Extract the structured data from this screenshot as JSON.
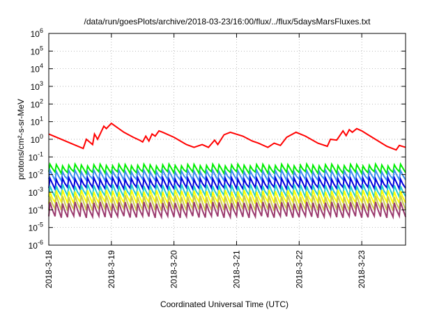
{
  "chart_data": {
    "type": "line",
    "title": "/data/run/goesPlots/archive/2018-03-23/16:00/flux/../flux/5daysMarsFluxes.txt",
    "xlabel": "Coordinated Universal Time (UTC)",
    "ylabel": "protons/cm²-s-sr-MeV",
    "yscale": "log",
    "ylim": [
      -6,
      6
    ],
    "xlim": [
      0,
      5.7
    ],
    "grid": true,
    "x_ticks": [
      {
        "x": 0,
        "label": "2018-3-18"
      },
      {
        "x": 1,
        "label": "2018-3-19"
      },
      {
        "x": 2,
        "label": "2018-3-20"
      },
      {
        "x": 3,
        "label": "2018-3-21"
      },
      {
        "x": 4,
        "label": "2018-3-22"
      },
      {
        "x": 5,
        "label": "2018-3-23"
      }
    ],
    "y_ticks": [
      {
        "exp": -6,
        "base": "10",
        "sup": "-6"
      },
      {
        "exp": -5,
        "base": "10",
        "sup": "-5"
      },
      {
        "exp": -4,
        "base": "10",
        "sup": "-4"
      },
      {
        "exp": -3,
        "base": "10",
        "sup": "-3"
      },
      {
        "exp": -2,
        "base": "10",
        "sup": "-2"
      },
      {
        "exp": -1,
        "base": "10",
        "sup": "-1"
      },
      {
        "exp": 0,
        "base": "10",
        "sup": "0"
      },
      {
        "exp": 1,
        "base": "10",
        "sup": "1"
      },
      {
        "exp": 2,
        "base": "10",
        "sup": "2"
      },
      {
        "exp": 3,
        "base": "10",
        "sup": "3"
      },
      {
        "exp": 4,
        "base": "10",
        "sup": "4"
      },
      {
        "exp": 5,
        "base": "10",
        "sup": "5"
      },
      {
        "exp": 6,
        "base": "10",
        "sup": "6"
      }
    ],
    "series": [
      {
        "color": "#ff0000",
        "x": [
          0.0,
          0.4,
          0.55,
          0.6,
          0.7,
          0.73,
          0.78,
          0.88,
          0.92,
          1.0,
          1.05,
          1.2,
          1.35,
          1.45,
          1.5,
          1.55,
          1.6,
          1.65,
          1.7,
          1.76,
          1.82,
          2.0,
          2.2,
          2.32,
          2.45,
          2.55,
          2.65,
          2.7,
          2.8,
          2.9,
          3.1,
          3.25,
          3.35,
          3.5,
          3.6,
          3.7,
          3.8,
          3.95,
          4.1,
          4.3,
          4.45,
          4.5,
          4.6,
          4.7,
          4.75,
          4.8,
          4.85,
          4.92,
          5.0,
          5.1,
          5.4,
          5.55,
          5.6,
          5.7
        ],
        "y": [
          2.0,
          0.5,
          0.3,
          1.0,
          0.5,
          2.0,
          1.0,
          5.5,
          4.0,
          8.0,
          6.0,
          2.5,
          1.3,
          0.9,
          0.7,
          1.5,
          0.8,
          2.0,
          1.5,
          3.0,
          2.5,
          1.3,
          0.5,
          0.35,
          0.5,
          0.35,
          0.9,
          0.5,
          1.8,
          2.5,
          1.5,
          0.8,
          0.6,
          0.35,
          0.6,
          0.45,
          1.3,
          2.5,
          1.5,
          0.6,
          0.4,
          1.0,
          0.9,
          3.0,
          1.6,
          3.5,
          2.5,
          4.0,
          3.0,
          1.8,
          0.4,
          0.25,
          0.45,
          0.35
        ]
      },
      {
        "color": "#00ee00",
        "peaks": 57,
        "peak": 0.035,
        "trough": 0.013,
        "x_start": 0.0,
        "x_end": 5.7
      },
      {
        "color": "#3d8ef0",
        "peaks": 57,
        "peak": 0.016,
        "trough": 0.005,
        "x_start": 0.0,
        "x_end": 5.7
      },
      {
        "color": "#0000dd",
        "peaks": 57,
        "peak": 0.006,
        "trough": 0.0017,
        "x_start": 0.0,
        "x_end": 5.7
      },
      {
        "color": "#22cccc",
        "peaks": 57,
        "peak": 0.0025,
        "trough": 0.0006,
        "x_start": 0.0,
        "x_end": 5.7
      },
      {
        "color": "#ffff00",
        "peaks": 57,
        "peak": 0.0012,
        "trough": 0.00025,
        "x_start": 0.0,
        "x_end": 5.7
      },
      {
        "color": "#c8c850",
        "peaks": 57,
        "peak": 0.0006,
        "trough": 0.0001,
        "x_start": 0.0,
        "x_end": 5.7
      },
      {
        "color": "#9b3a6e",
        "peaks": 57,
        "peak": 0.00025,
        "trough": 4e-05,
        "x_start": 0.0,
        "x_end": 5.7
      }
    ]
  }
}
